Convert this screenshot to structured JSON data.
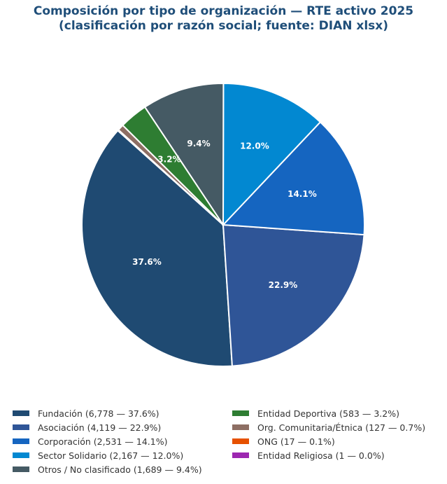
{
  "chart_data": {
    "type": "pie",
    "title": "Composición por tipo de organización — RTE activo 2025",
    "subtitle": "(clasificación por razón social; fuente: DIAN xlsx)",
    "start_angle_deg": 138.2,
    "direction": "counterclockwise",
    "slices": [
      {
        "label": "Fundación",
        "count": 6778,
        "percent": 37.6,
        "color": "#1f4a72",
        "legend": "Fundación (6,778 — 37.6%)",
        "data_label": "37.6%"
      },
      {
        "label": "Asociación",
        "count": 4119,
        "percent": 22.9,
        "color": "#2f5597",
        "legend": "Asociación (4,119 — 22.9%)",
        "data_label": "22.9%"
      },
      {
        "label": "Corporación",
        "count": 2531,
        "percent": 14.1,
        "color": "#1565c0",
        "legend": "Corporación (2,531 — 14.1%)",
        "data_label": "14.1%"
      },
      {
        "label": "Sector Solidario",
        "count": 2167,
        "percent": 12.0,
        "color": "#0288d1",
        "legend": "Sector Solidario (2,167 — 12.0%)",
        "data_label": "12.0%"
      },
      {
        "label": "Otros / No clasificado",
        "count": 1689,
        "percent": 9.4,
        "color": "#455a64",
        "legend": "Otros / No clasificado (1,689 — 9.4%)",
        "data_label": "9.4%"
      },
      {
        "label": "Entidad Deportiva",
        "count": 583,
        "percent": 3.2,
        "color": "#2e7d32",
        "legend": "Entidad Deportiva (583 — 3.2%)",
        "data_label": "3.2%"
      },
      {
        "label": "Org. Comunitaria/Étnica",
        "count": 127,
        "percent": 0.7,
        "color": "#8d6e63",
        "legend": "Org. Comunitaria/Étnica (127 — 0.7%)",
        "data_label": ""
      },
      {
        "label": "ONG",
        "count": 17,
        "percent": 0.1,
        "color": "#e65100",
        "legend": "ONG (17 — 0.1%)",
        "data_label": ""
      },
      {
        "label": "Entidad Religiosa",
        "count": 1,
        "percent": 0.0,
        "color": "#9c27b0",
        "legend": "Entidad Religiosa (1 — 0.0%)",
        "data_label": ""
      }
    ],
    "legend_placement": "bottom"
  }
}
